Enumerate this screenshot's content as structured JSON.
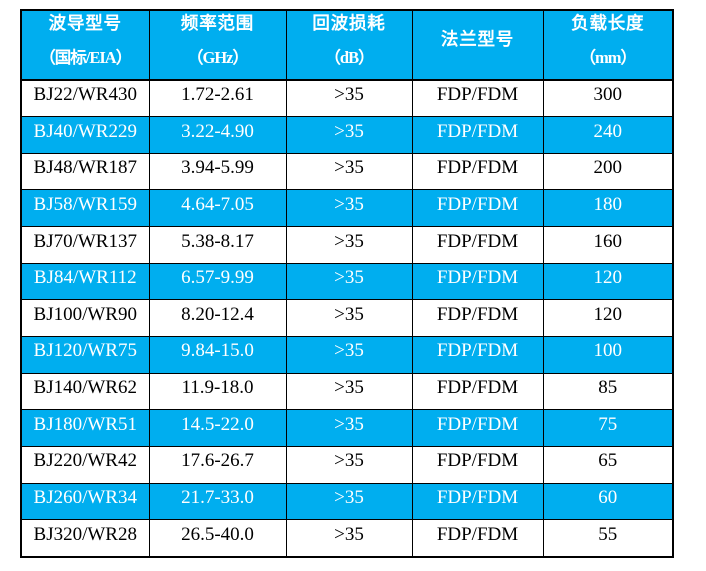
{
  "page": {
    "background": "#ffffff"
  },
  "table": {
    "colors": {
      "header_bg": "#00AEEF",
      "header_text": "#ffffff",
      "zebra_bg": "#00AEEF",
      "zebra_text": "#ffffff",
      "plain_bg": "#ffffff",
      "plain_text": "#000000",
      "grid": "#000000"
    },
    "columns": [
      {
        "title": "波导型号",
        "sub": "（国标/EIA）"
      },
      {
        "title": "频率范围",
        "sub": "（GHz）"
      },
      {
        "title": "回波损耗",
        "sub": "（dB）"
      },
      {
        "title": "法兰型号",
        "sub": ""
      },
      {
        "title": "负载长度",
        "sub": "（mm）"
      }
    ],
    "rows": [
      [
        "BJ22/WR430",
        "1.72-2.61",
        ">35",
        "FDP/FDM",
        "300"
      ],
      [
        "BJ40/WR229",
        "3.22-4.90",
        ">35",
        "FDP/FDM",
        "240"
      ],
      [
        "BJ48/WR187",
        "3.94-5.99",
        ">35",
        "FDP/FDM",
        "200"
      ],
      [
        "BJ58/WR159",
        "4.64-7.05",
        ">35",
        "FDP/FDM",
        "180"
      ],
      [
        "BJ70/WR137",
        "5.38-8.17",
        ">35",
        "FDP/FDM",
        "160"
      ],
      [
        "BJ84/WR112",
        "6.57-9.99",
        ">35",
        "FDP/FDM",
        "120"
      ],
      [
        "BJ100/WR90",
        "8.20-12.4",
        ">35",
        "FDP/FDM",
        "120"
      ],
      [
        "BJ120/WR75",
        "9.84-15.0",
        ">35",
        "FDP/FDM",
        "100"
      ],
      [
        "BJ140/WR62",
        "11.9-18.0",
        ">35",
        "FDP/FDM",
        "85"
      ],
      [
        "BJ180/WR51",
        "14.5-22.0",
        ">35",
        "FDP/FDM",
        "75"
      ],
      [
        "BJ220/WR42",
        "17.6-26.7",
        ">35",
        "FDP/FDM",
        "65"
      ],
      [
        "BJ260/WR34",
        "21.7-33.0",
        ">35",
        "FDP/FDM",
        "60"
      ],
      [
        "BJ320/WR28",
        "26.5-40.0",
        ">35",
        "FDP/FDM",
        "55"
      ]
    ]
  },
  "chart_data": {
    "type": "table",
    "title": "",
    "columns": [
      "波导型号（国标/EIA）",
      "频率范围（GHz）",
      "回波损耗（dB）",
      "法兰型号",
      "负载长度（mm）"
    ],
    "rows": [
      [
        "BJ22/WR430",
        "1.72-2.61",
        ">35",
        "FDP/FDM",
        300
      ],
      [
        "BJ40/WR229",
        "3.22-4.90",
        ">35",
        "FDP/FDM",
        240
      ],
      [
        "BJ48/WR187",
        "3.94-5.99",
        ">35",
        "FDP/FDM",
        200
      ],
      [
        "BJ58/WR159",
        "4.64-7.05",
        ">35",
        "FDP/FDM",
        180
      ],
      [
        "BJ70/WR137",
        "5.38-8.17",
        ">35",
        "FDP/FDM",
        160
      ],
      [
        "BJ84/WR112",
        "6.57-9.99",
        ">35",
        "FDP/FDM",
        120
      ],
      [
        "BJ100/WR90",
        "8.20-12.4",
        ">35",
        "FDP/FDM",
        120
      ],
      [
        "BJ120/WR75",
        "9.84-15.0",
        ">35",
        "FDP/FDM",
        100
      ],
      [
        "BJ140/WR62",
        "11.9-18.0",
        ">35",
        "FDP/FDM",
        85
      ],
      [
        "BJ180/WR51",
        "14.5-22.0",
        ">35",
        "FDP/FDM",
        75
      ],
      [
        "BJ220/WR42",
        "17.6-26.7",
        ">35",
        "FDP/FDM",
        65
      ],
      [
        "BJ260/WR34",
        "21.7-33.0",
        ">35",
        "FDP/FDM",
        60
      ],
      [
        "BJ320/WR28",
        "26.5-40.0",
        ">35",
        "FDP/FDM",
        55
      ]
    ]
  }
}
